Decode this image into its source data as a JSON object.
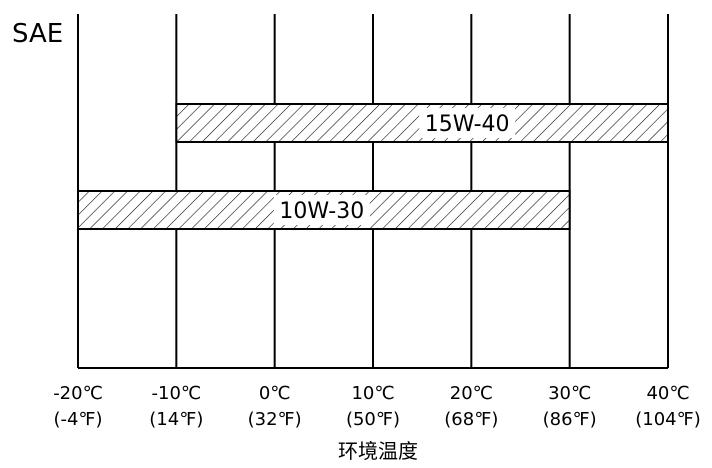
{
  "chart_data": {
    "type": "bar",
    "orientation": "horizontal",
    "title": "SAE",
    "xlabel": "环境温度",
    "xlim": [
      -20,
      40
    ],
    "ticks": [
      -20,
      -10,
      0,
      10,
      20,
      30,
      40
    ],
    "tick_labels_c": [
      "-20℃",
      "-10℃",
      "0℃",
      "10℃",
      "20℃",
      "30℃",
      "40℃"
    ],
    "tick_labels_f": [
      "(-4℉)",
      "(14℉)",
      "(32℉)",
      "(50℉)",
      "(68℉)",
      "(86℉)",
      "(104℉)"
    ],
    "grid": true,
    "series": [
      {
        "label": "15W-40",
        "start": -10,
        "end": 40
      },
      {
        "label": "10W-30",
        "start": -20,
        "end": 30
      }
    ],
    "fill_pattern": "diagonal-hatch",
    "colors": {
      "line": "#000000",
      "background": "#ffffff"
    }
  }
}
